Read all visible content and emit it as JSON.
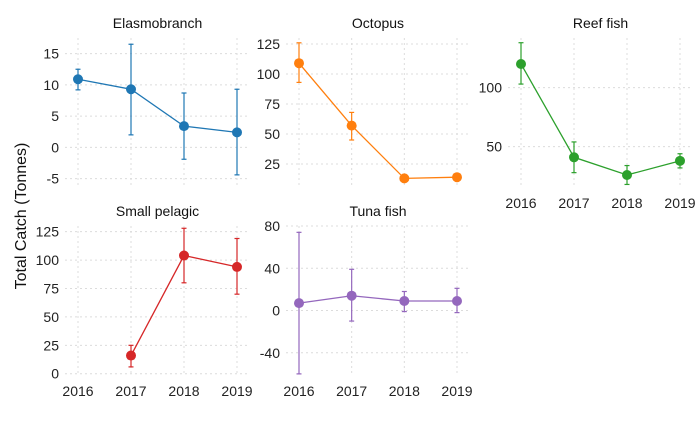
{
  "chart_data": {
    "type": "line",
    "ylabel": "Total Catch (Tonnes)",
    "x": [
      "2016",
      "2017",
      "2018",
      "2019"
    ],
    "panels": [
      {
        "title": "Elasmobranch",
        "color": "#1f77b4",
        "y_ticks": [
          -5,
          0,
          5,
          10,
          15
        ],
        "x_ticks_shown": false,
        "points": [
          {
            "x": "2016",
            "y": 10.9,
            "low": 9.2,
            "high": 12.5
          },
          {
            "x": "2017",
            "y": 9.3,
            "low": 2.0,
            "high": 16.5
          },
          {
            "x": "2018",
            "y": 3.4,
            "low": -1.9,
            "high": 8.7
          },
          {
            "x": "2019",
            "y": 2.4,
            "low": -4.4,
            "high": 9.3
          }
        ]
      },
      {
        "title": "Octopus",
        "color": "#ff7f0e",
        "y_ticks": [
          25,
          50,
          75,
          100,
          125
        ],
        "x_ticks_shown": false,
        "points": [
          {
            "x": "2016",
            "y": 109,
            "low": 93,
            "high": 126
          },
          {
            "x": "2017",
            "y": 57,
            "low": 45,
            "high": 68
          },
          {
            "x": "2018",
            "y": 13,
            "low": 13,
            "high": 13
          },
          {
            "x": "2019",
            "y": 14,
            "low": 14,
            "high": 14
          }
        ]
      },
      {
        "title": "Reef fish",
        "color": "#2ca02c",
        "y_ticks": [
          50,
          100
        ],
        "x_ticks_shown": true,
        "points": [
          {
            "x": "2016",
            "y": 120,
            "low": 103,
            "high": 138
          },
          {
            "x": "2017",
            "y": 41,
            "low": 28,
            "high": 54
          },
          {
            "x": "2018",
            "y": 26,
            "low": 18,
            "high": 34
          },
          {
            "x": "2019",
            "y": 38,
            "low": 32,
            "high": 44
          }
        ]
      },
      {
        "title": "Small pelagic",
        "color": "#d62728",
        "y_ticks": [
          0,
          25,
          50,
          75,
          100,
          125
        ],
        "x_ticks_shown": true,
        "points": [
          {
            "x": "2017",
            "y": 16,
            "low": 6,
            "high": 25
          },
          {
            "x": "2018",
            "y": 104,
            "low": 80,
            "high": 128
          },
          {
            "x": "2019",
            "y": 94,
            "low": 70,
            "high": 119
          }
        ]
      },
      {
        "title": "Tuna fish",
        "color": "#9467bd",
        "y_ticks": [
          -40,
          0,
          40,
          80
        ],
        "x_ticks_shown": true,
        "points": [
          {
            "x": "2016",
            "y": 7,
            "low": -60,
            "high": 74
          },
          {
            "x": "2017",
            "y": 14,
            "low": -10,
            "high": 39
          },
          {
            "x": "2018",
            "y": 9,
            "low": -1,
            "high": 18
          },
          {
            "x": "2019",
            "y": 9,
            "low": -2,
            "high": 21
          }
        ]
      }
    ]
  }
}
